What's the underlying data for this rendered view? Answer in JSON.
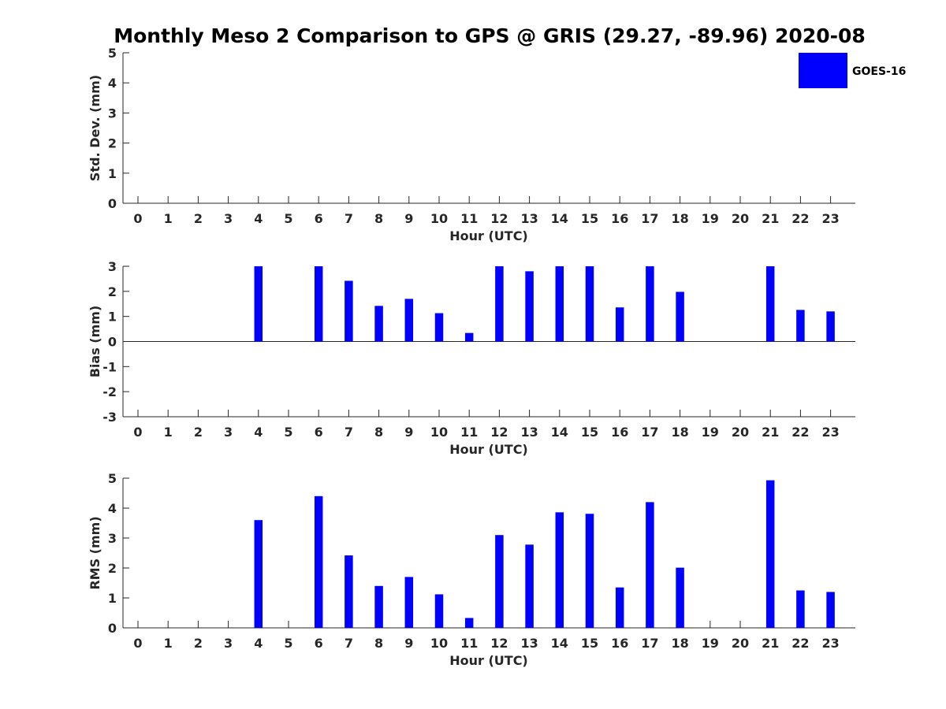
{
  "title": "Monthly Meso 2 Comparison to GPS @ GRIS (29.27, -89.96) 2020-08",
  "legend": {
    "label": "GOES-16",
    "color": "#0000ff",
    "placement": "top-right"
  },
  "chart_data": [
    {
      "type": "bar",
      "categories": [
        "0",
        "1",
        "2",
        "3",
        "4",
        "5",
        "6",
        "7",
        "8",
        "9",
        "10",
        "11",
        "12",
        "13",
        "14",
        "15",
        "16",
        "17",
        "18",
        "19",
        "20",
        "21",
        "22",
        "23"
      ],
      "series": [
        {
          "name": "GOES-16",
          "color": "#0000ff",
          "values": [
            null,
            null,
            null,
            null,
            null,
            null,
            null,
            null,
            null,
            null,
            null,
            null,
            null,
            null,
            null,
            null,
            null,
            null,
            null,
            null,
            null,
            null,
            null,
            null
          ]
        }
      ],
      "xlabel": "Hour (UTC)",
      "ylabel": "Std. Dev. (mm)",
      "ylim": [
        0,
        5
      ],
      "yticks": [
        "0",
        "1",
        "2",
        "3",
        "4",
        "5"
      ],
      "grid": false
    },
    {
      "type": "bar",
      "categories": [
        "0",
        "1",
        "2",
        "3",
        "4",
        "5",
        "6",
        "7",
        "8",
        "9",
        "10",
        "11",
        "12",
        "13",
        "14",
        "15",
        "16",
        "17",
        "18",
        "19",
        "20",
        "21",
        "22",
        "23"
      ],
      "series": [
        {
          "name": "GOES-16",
          "color": "#0000ff",
          "values": [
            null,
            null,
            null,
            null,
            3.0,
            null,
            3.0,
            2.42,
            1.42,
            1.7,
            1.13,
            0.34,
            3.0,
            2.8,
            3.0,
            3.0,
            1.36,
            3.0,
            1.98,
            null,
            null,
            3.0,
            1.26,
            1.2
          ]
        }
      ],
      "xlabel": "Hour (UTC)",
      "ylabel": "Bias (mm)",
      "ylim": [
        -3,
        3
      ],
      "yticks": [
        "-3",
        "-2",
        "-1",
        "0",
        "1",
        "2",
        "3"
      ],
      "grid": false
    },
    {
      "type": "bar",
      "categories": [
        "0",
        "1",
        "2",
        "3",
        "4",
        "5",
        "6",
        "7",
        "8",
        "9",
        "10",
        "11",
        "12",
        "13",
        "14",
        "15",
        "16",
        "17",
        "18",
        "19",
        "20",
        "21",
        "22",
        "23"
      ],
      "series": [
        {
          "name": "GOES-16",
          "color": "#0000ff",
          "values": [
            null,
            null,
            null,
            null,
            3.6,
            null,
            4.4,
            2.42,
            1.4,
            1.7,
            1.12,
            0.33,
            3.1,
            2.78,
            3.86,
            3.81,
            1.35,
            4.2,
            2.01,
            null,
            null,
            4.93,
            1.25,
            1.2
          ]
        }
      ],
      "xlabel": "Hour (UTC)",
      "ylabel": "RMS (mm)",
      "ylim": [
        0,
        5
      ],
      "yticks": [
        "0",
        "1",
        "2",
        "3",
        "4",
        "5"
      ],
      "grid": false
    }
  ]
}
